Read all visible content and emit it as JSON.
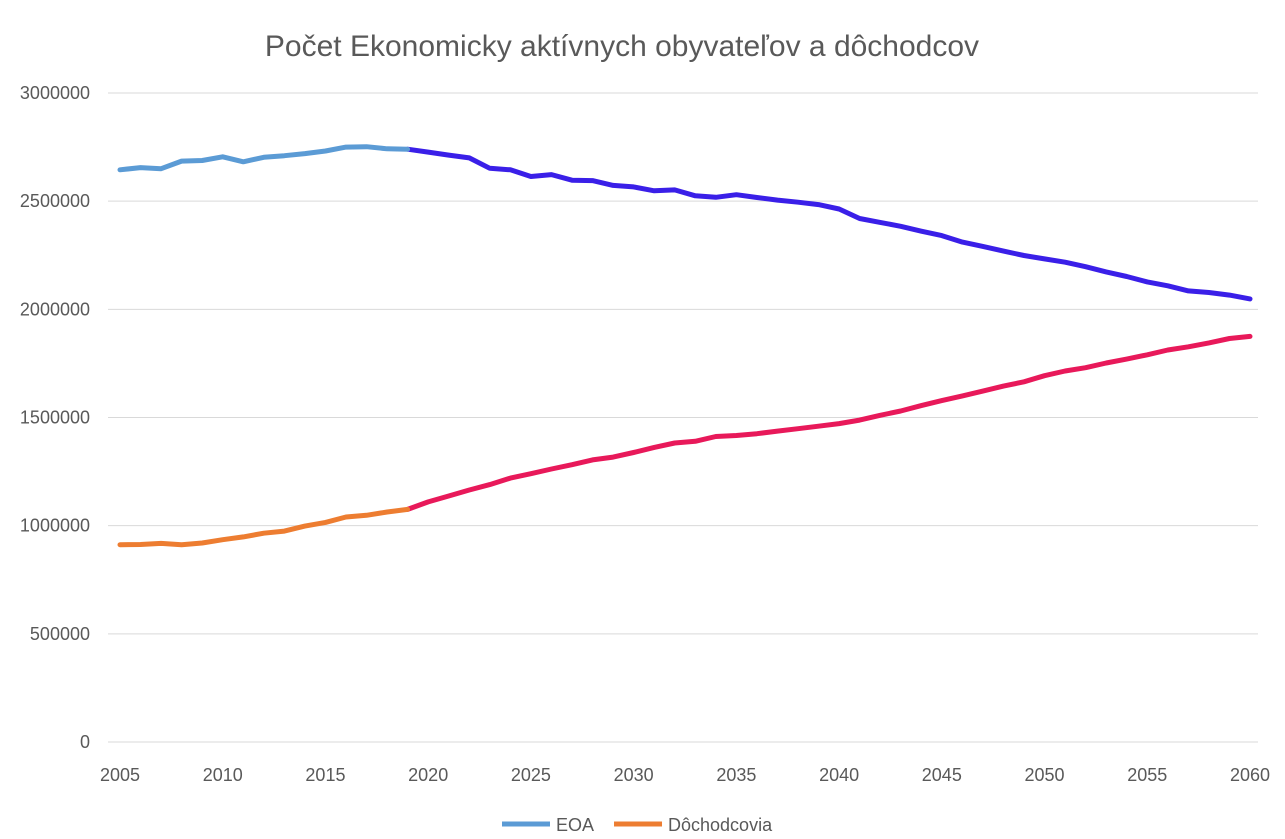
{
  "chart_data": {
    "type": "line",
    "title": "Počet Ekonomicky aktívnych obyvateľov a dôchodcov",
    "xlabel": "",
    "ylabel": "",
    "xlim": [
      2005,
      2060
    ],
    "ylim": [
      0,
      3000000
    ],
    "grid": true,
    "legend_position": "bottom",
    "x_ticks": [
      "2005",
      "2010",
      "2015",
      "2020",
      "2025",
      "2030",
      "2035",
      "2040",
      "2045",
      "2050",
      "2055",
      "2060"
    ],
    "x_tick_values": [
      2005,
      2010,
      2015,
      2020,
      2025,
      2030,
      2035,
      2040,
      2045,
      2050,
      2055,
      2060
    ],
    "y_ticks": [
      "0",
      "500000",
      "1000000",
      "1500000",
      "2000000",
      "2500000",
      "3000000"
    ],
    "y_tick_values": [
      0,
      500000,
      1000000,
      1500000,
      2000000,
      2500000,
      3000000
    ],
    "projection_start_year": 2019,
    "series": [
      {
        "name": "EOA",
        "color": "#5b9bd5",
        "projection_color": "#3a1fe8",
        "points": [
          [
            2005,
            2645000
          ],
          [
            2006,
            2655000
          ],
          [
            2007,
            2650000
          ],
          [
            2008,
            2685000
          ],
          [
            2009,
            2688000
          ],
          [
            2010,
            2705000
          ],
          [
            2011,
            2682000
          ],
          [
            2012,
            2703000
          ],
          [
            2013,
            2710000
          ],
          [
            2014,
            2720000
          ],
          [
            2015,
            2732000
          ],
          [
            2016,
            2750000
          ],
          [
            2017,
            2752000
          ],
          [
            2018,
            2742000
          ],
          [
            2019,
            2740000
          ],
          [
            2020,
            2727000
          ],
          [
            2021,
            2713000
          ],
          [
            2022,
            2700000
          ],
          [
            2023,
            2652000
          ],
          [
            2024,
            2645000
          ],
          [
            2025,
            2614000
          ],
          [
            2026,
            2623000
          ],
          [
            2027,
            2597000
          ],
          [
            2028,
            2595000
          ],
          [
            2029,
            2573000
          ],
          [
            2030,
            2566000
          ],
          [
            2031,
            2548000
          ],
          [
            2032,
            2552000
          ],
          [
            2033,
            2525000
          ],
          [
            2034,
            2518000
          ],
          [
            2035,
            2530000
          ],
          [
            2036,
            2517000
          ],
          [
            2037,
            2505000
          ],
          [
            2038,
            2495000
          ],
          [
            2039,
            2484000
          ],
          [
            2040,
            2464000
          ],
          [
            2041,
            2420000
          ],
          [
            2042,
            2402000
          ],
          [
            2043,
            2384000
          ],
          [
            2044,
            2361000
          ],
          [
            2045,
            2341000
          ],
          [
            2046,
            2311000
          ],
          [
            2047,
            2291000
          ],
          [
            2048,
            2269000
          ],
          [
            2049,
            2249000
          ],
          [
            2050,
            2233000
          ],
          [
            2051,
            2218000
          ],
          [
            2052,
            2197000
          ],
          [
            2053,
            2173000
          ],
          [
            2054,
            2152000
          ],
          [
            2055,
            2127000
          ],
          [
            2056,
            2109000
          ],
          [
            2057,
            2085000
          ],
          [
            2058,
            2078000
          ],
          [
            2059,
            2066000
          ],
          [
            2060,
            2048000
          ]
        ]
      },
      {
        "name": "Dôchodcovia",
        "color": "#ed7d31",
        "projection_color": "#e8195a",
        "points": [
          [
            2005,
            912000
          ],
          [
            2006,
            913000
          ],
          [
            2007,
            918000
          ],
          [
            2008,
            912000
          ],
          [
            2009,
            920000
          ],
          [
            2010,
            935000
          ],
          [
            2011,
            948000
          ],
          [
            2012,
            965000
          ],
          [
            2013,
            975000
          ],
          [
            2014,
            998000
          ],
          [
            2015,
            1015000
          ],
          [
            2016,
            1040000
          ],
          [
            2017,
            1048000
          ],
          [
            2018,
            1063000
          ],
          [
            2019,
            1075000
          ],
          [
            2020,
            1110000
          ],
          [
            2021,
            1137000
          ],
          [
            2022,
            1165000
          ],
          [
            2023,
            1190000
          ],
          [
            2024,
            1220000
          ],
          [
            2025,
            1240000
          ],
          [
            2026,
            1262000
          ],
          [
            2027,
            1282000
          ],
          [
            2028,
            1304000
          ],
          [
            2029,
            1317000
          ],
          [
            2030,
            1338000
          ],
          [
            2031,
            1362000
          ],
          [
            2032,
            1382000
          ],
          [
            2033,
            1390000
          ],
          [
            2034,
            1412000
          ],
          [
            2035,
            1417000
          ],
          [
            2036,
            1425000
          ],
          [
            2037,
            1437000
          ],
          [
            2038,
            1448000
          ],
          [
            2039,
            1460000
          ],
          [
            2040,
            1472000
          ],
          [
            2041,
            1488000
          ],
          [
            2042,
            1510000
          ],
          [
            2043,
            1530000
          ],
          [
            2044,
            1555000
          ],
          [
            2045,
            1578000
          ],
          [
            2046,
            1600000
          ],
          [
            2047,
            1622000
          ],
          [
            2048,
            1645000
          ],
          [
            2049,
            1665000
          ],
          [
            2050,
            1693000
          ],
          [
            2051,
            1715000
          ],
          [
            2052,
            1730000
          ],
          [
            2053,
            1752000
          ],
          [
            2054,
            1770000
          ],
          [
            2055,
            1790000
          ],
          [
            2056,
            1812000
          ],
          [
            2057,
            1827000
          ],
          [
            2058,
            1845000
          ],
          [
            2059,
            1865000
          ],
          [
            2060,
            1875000
          ]
        ]
      }
    ]
  }
}
